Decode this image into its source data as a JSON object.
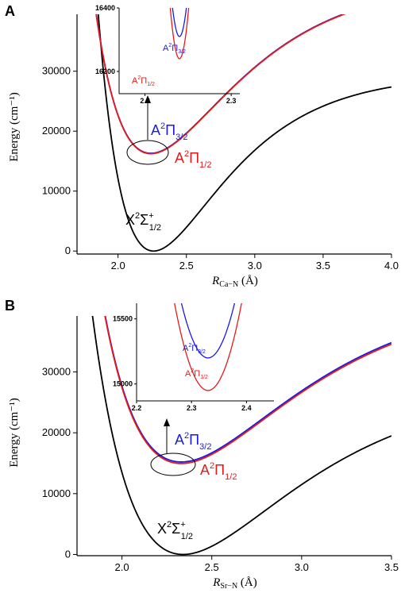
{
  "panels": [
    {
      "letter": "A",
      "ylabel": "Energy (cm⁻¹)",
      "xlabel": {
        "main": "R",
        "sub": "Ca−N",
        "unit": " (Å)"
      },
      "x_ticks": [
        "2.0",
        "2.5",
        "3.0",
        "3.5",
        "4.0"
      ],
      "y_ticks": [
        "0",
        "10000",
        "20000",
        "30000"
      ],
      "labels": {
        "X": {
          "base": "X",
          "sup": "2",
          "sym": "Σ",
          "supsym": "+",
          "sub": "1/2"
        },
        "A32": {
          "base": "A",
          "sup": "2",
          "sym": "Π",
          "sub": "3/2"
        },
        "A12": {
          "base": "A",
          "sup": "2",
          "sym": "Π",
          "sub": "1/2"
        }
      },
      "inset": {
        "x_ticks": [
          "2.2",
          "2.3"
        ],
        "y_ticks": [
          "16200",
          "16400"
        ]
      }
    },
    {
      "letter": "B",
      "ylabel": "Energy (cm⁻¹)",
      "xlabel": {
        "main": "R",
        "sub": "Sr−N",
        "unit": " (Å)"
      },
      "x_ticks": [
        "2.0",
        "2.5",
        "3.0",
        "3.5"
      ],
      "y_ticks": [
        "0",
        "10000",
        "20000",
        "30000"
      ],
      "labels": {
        "X": {
          "base": "X",
          "sup": "2",
          "sym": "Σ",
          "supsym": "+",
          "sub": "1/2"
        },
        "A32": {
          "base": "A",
          "sup": "2",
          "sym": "Π",
          "sub": "3/2"
        },
        "A12": {
          "base": "A",
          "sup": "2",
          "sym": "Π",
          "sub": "1/2"
        }
      },
      "inset": {
        "x_ticks": [
          "2.2",
          "2.3",
          "2.4"
        ],
        "y_ticks": [
          "15000",
          "15500"
        ]
      }
    }
  ],
  "chart_data": [
    {
      "type": "line",
      "panel": "A",
      "xlim": [
        1.7,
        4.0
      ],
      "ylim": [
        -500,
        39500
      ],
      "series": [
        {
          "name": "X²Σ⁺₁/₂",
          "color": "#000000",
          "De": 29500,
          "a": 1.9,
          "re": 2.26,
          "offset": 0
        },
        {
          "name": "A²Π₃/₂",
          "color": "#1a1ae6",
          "De": 29000,
          "a": 1.6,
          "re": 2.24,
          "offset": 16310
        },
        {
          "name": "A²Π₁/₂",
          "color": "#e61a1a",
          "De": 29000,
          "a": 1.6,
          "re": 2.24,
          "offset": 16240
        }
      ],
      "inset": {
        "xlim": [
          2.17,
          2.31
        ],
        "ylim": [
          16130,
          16400
        ],
        "series": [
          {
            "name": "A²Π₃/₂",
            "color": "#1a1ae6",
            "min": 16310,
            "re": 2.24,
            "k": 1400000
          },
          {
            "name": "A²Π₁/₂",
            "color": "#e61a1a",
            "min": 16240,
            "re": 2.24,
            "k": 1400000
          }
        ]
      }
    },
    {
      "type": "line",
      "panel": "B",
      "xlim": [
        1.75,
        3.5
      ],
      "ylim": [
        -200,
        39200
      ],
      "series": [
        {
          "name": "X²Σ⁺₁/₂",
          "color": "#000000",
          "De": 28000,
          "a": 1.55,
          "re": 2.34,
          "offset": 0
        },
        {
          "name": "A²Π₃/₂",
          "color": "#1a1ae6",
          "De": 28000,
          "a": 1.55,
          "re": 2.33,
          "offset": 15200
        },
        {
          "name": "A²Π₁/₂",
          "color": "#e61a1a",
          "De": 28000,
          "a": 1.55,
          "re": 2.33,
          "offset": 14950
        }
      ],
      "inset": {
        "xlim": [
          2.2,
          2.45
        ],
        "ylim": [
          14870,
          15620
        ],
        "series": [
          {
            "name": "A²Π₃/₂",
            "color": "#1a1ae6",
            "min": 15200,
            "re": 2.33,
            "k": 180000
          },
          {
            "name": "A²Π₁/₂",
            "color": "#e61a1a",
            "min": 14950,
            "re": 2.33,
            "k": 180000
          }
        ]
      }
    }
  ]
}
